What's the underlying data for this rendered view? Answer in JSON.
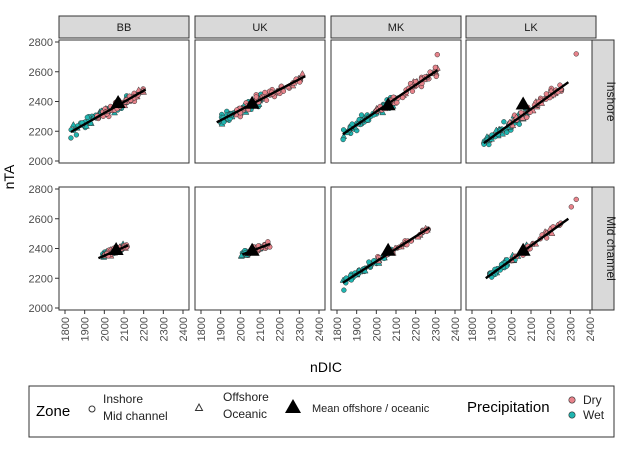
{
  "chart_data": {
    "type": "scatter",
    "facet_cols": [
      "BB",
      "UK",
      "MK",
      "LK"
    ],
    "facet_rows": [
      "Inshore",
      "Mid channel"
    ],
    "xlabel": "nDIC",
    "ylabel": "nTA",
    "xlim": [
      1800,
      2400
    ],
    "ylim": [
      2000,
      2800
    ],
    "x_ticks": [
      1800,
      1900,
      2000,
      2100,
      2200,
      2300,
      2400
    ],
    "y_ticks": [
      2000,
      2200,
      2400,
      2600,
      2800
    ],
    "grid": false,
    "legend_position": "bottom",
    "legend": {
      "zone_title": "Zone",
      "zone_circle": [
        "Inshore",
        "Mid channel"
      ],
      "zone_triangle": [
        "Offshore",
        "Oceanic"
      ],
      "mean_label": "Mean offshore / oceanic",
      "precip_title": "Precipitation",
      "precip_items": [
        "Dry",
        "Wet"
      ]
    },
    "colors": {
      "Dry": "#e8838b",
      "Wet": "#1fb5b0",
      "mean": "#000000"
    },
    "panels": [
      {
        "col": "BB",
        "row": "Inshore",
        "fit": {
          "x": [
            1830,
            2210
          ],
          "y": [
            2195,
            2480
          ]
        },
        "mean": [
          2070,
          2390
        ],
        "wet_x_range": [
          1830,
          2120
        ],
        "dry_x_range": [
          1960,
          2200
        ]
      },
      {
        "col": "UK",
        "row": "Inshore",
        "fit": {
          "x": [
            1880,
            2330
          ],
          "y": [
            2260,
            2570
          ]
        },
        "mean": [
          2060,
          2385
        ],
        "wet_x_range": [
          1900,
          2110
        ],
        "dry_x_range": [
          1980,
          2330
        ]
      },
      {
        "col": "MK",
        "row": "Inshore",
        "fit": {
          "x": [
            1830,
            2310
          ],
          "y": [
            2180,
            2610
          ]
        },
        "mean": [
          2060,
          2375
        ],
        "wet_x_range": [
          1830,
          2100
        ],
        "dry_x_range": [
          1990,
          2320
        ]
      },
      {
        "col": "LK",
        "row": "Inshore",
        "fit": {
          "x": [
            1860,
            2290
          ],
          "y": [
            2120,
            2530
          ]
        },
        "mean": [
          2060,
          2380
        ],
        "wet_x_range": [
          1860,
          2080
        ],
        "dry_x_range": [
          1990,
          2260
        ]
      },
      {
        "col": "BB",
        "row": "Mid channel",
        "fit": {
          "x": [
            1970,
            2120
          ],
          "y": [
            2335,
            2420
          ]
        },
        "mean": [
          2060,
          2390
        ],
        "wet_x_range": [
          1990,
          2100
        ],
        "dry_x_range": [
          2000,
          2120
        ]
      },
      {
        "col": "UK",
        "row": "Mid channel",
        "fit": {
          "x": [
            2010,
            2150
          ],
          "y": [
            2360,
            2430
          ]
        },
        "mean": [
          2060,
          2385
        ],
        "wet_x_range": [
          2000,
          2100
        ],
        "dry_x_range": [
          2040,
          2150
        ]
      },
      {
        "col": "MK",
        "row": "Mid channel",
        "fit": {
          "x": [
            1830,
            2270
          ],
          "y": [
            2170,
            2540
          ]
        },
        "mean": [
          2060,
          2385
        ],
        "wet_x_range": [
          1830,
          2080
        ],
        "dry_x_range": [
          2000,
          2270
        ]
      },
      {
        "col": "LK",
        "row": "Mid channel",
        "fit": {
          "x": [
            1870,
            2290
          ],
          "y": [
            2200,
            2600
          ]
        },
        "mean": [
          2060,
          2385
        ],
        "wet_x_range": [
          1880,
          2080
        ],
        "dry_x_range": [
          2000,
          2260
        ]
      }
    ],
    "outliers": [
      {
        "col": "LK",
        "row": "Inshore",
        "x": 2330,
        "y": 2720,
        "group": "Dry"
      },
      {
        "col": "MK",
        "row": "Inshore",
        "x": 2310,
        "y": 2715,
        "group": "Dry"
      },
      {
        "col": "LK",
        "row": "Mid channel",
        "x": 2330,
        "y": 2730,
        "group": "Dry"
      },
      {
        "col": "LK",
        "row": "Mid channel",
        "x": 2305,
        "y": 2680,
        "group": "Dry"
      },
      {
        "col": "BB",
        "row": "Inshore",
        "x": 1830,
        "y": 2155,
        "group": "Wet"
      },
      {
        "col": "MK",
        "row": "Mid channel",
        "x": 1835,
        "y": 2120,
        "group": "Wet"
      }
    ]
  }
}
